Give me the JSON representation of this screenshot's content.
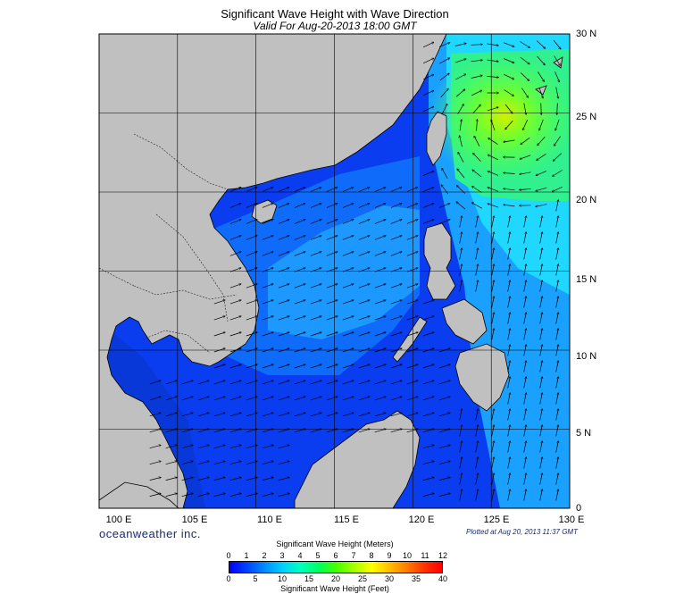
{
  "title": "Significant Wave Height with Wave Direction",
  "subtitle": "Valid For Aug-20-2013 18:00 GMT",
  "longitude_labels": [
    "100 E",
    "105 E",
    "110 E",
    "115 E",
    "120 E",
    "125 E",
    "130 E"
  ],
  "latitude_labels": [
    "30 N",
    "25 N",
    "20 N",
    "15 N",
    "10 N",
    "5 N",
    "0"
  ],
  "brand": "oceanweather inc.",
  "plotted": "Plotted at Aug 20, 2013 11:37 GMT",
  "colorbar": {
    "title_meters": "Significant Wave Height (Meters)",
    "title_feet": "Significant Wave Height (Feet)",
    "meters_ticks": [
      "0",
      "1",
      "2",
      "3",
      "4",
      "5",
      "6",
      "7",
      "8",
      "9",
      "10",
      "11",
      "12"
    ],
    "feet_ticks": [
      "0",
      "5",
      "10",
      "15",
      "20",
      "25",
      "30",
      "35",
      "40"
    ]
  },
  "colors": {
    "land": "#c0c0c0",
    "low_wave": "#0a3cf0",
    "mid_wave": "#20a8ff",
    "high_wave": "#40ff60",
    "peak_wave": "#c8f000"
  },
  "map_data": {
    "region": "South China Sea / Philippine Sea",
    "lon_range": [
      100,
      130
    ],
    "lat_range": [
      0,
      30
    ],
    "swell_direction": "mostly east to north-east in the South China Sea; cyclonic rotation near 25 N 125 E"
  }
}
